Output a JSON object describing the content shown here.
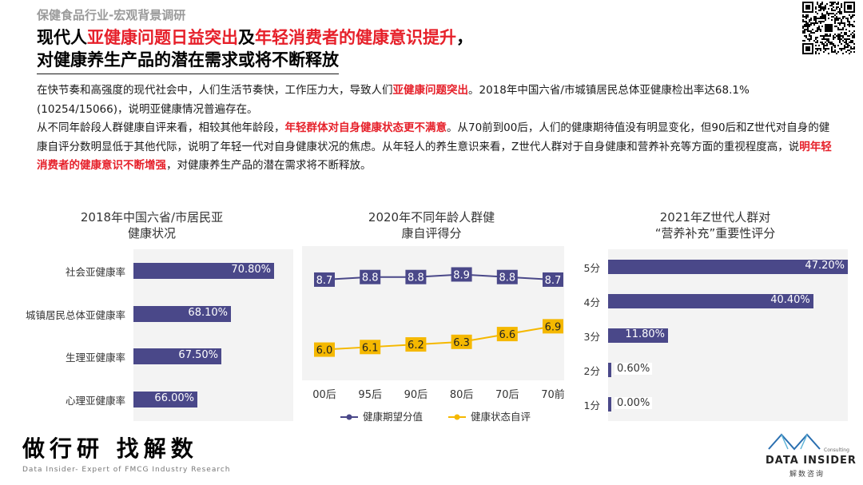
{
  "header": {
    "kicker": "保健食品行业-宏观背景调研",
    "title_line1": [
      {
        "text": "现代人",
        "red": false
      },
      {
        "text": "亚健康问题日益突出",
        "red": true
      },
      {
        "text": "及",
        "red": false
      },
      {
        "text": "年轻消费者的健康意识提升",
        "red": true
      },
      {
        "text": "，",
        "red": false
      }
    ],
    "title_line2": "对健康养生产品的潜在需求或将不断释放"
  },
  "paragraphs": [
    [
      {
        "text": "在快节奏和高强度的现代社会中，人们生活节奏快，工作压力大，导致人们",
        "red": false
      },
      {
        "text": "亚健康问题突出",
        "red": true
      },
      {
        "text": "。2018年中国六省/市城镇居民总体亚健康检出率达68.1%(10254/15066)，说明亚健康情况普遍存在。",
        "red": false
      }
    ],
    [
      {
        "text": "从不同年龄段人群健康自评来看，相较其他年龄段，",
        "red": false
      },
      {
        "text": "年轻群体对自身健康状态更不满意",
        "red": true
      },
      {
        "text": "。从70前到00后，人们的健康期待值没有明显变化，但90后和Z世代对自身的健康自评分数明显低于其他代际，说明了年轻一代对自身健康状况的焦虑。从年轻人的养生意识来看，Z世代人群对于自身健康和营养补充等方面的重视程度高，说",
        "red": false
      },
      {
        "text": "明年轻消费者的健康意识不断增强",
        "red": true
      },
      {
        "text": "，对健康养生产品的潜在需求将不断释放。",
        "red": false
      }
    ]
  ],
  "chart_data": [
    {
      "type": "bar",
      "orientation": "horizontal",
      "title": [
        "2018年中国六省/市居民亚",
        "健康状况"
      ],
      "categories": [
        "社会亚健康率",
        "城镇居民总体亚健康率",
        "生理亚健康率",
        "心理亚健康率"
      ],
      "values": [
        70.8,
        68.1,
        67.5,
        66.0
      ],
      "value_labels": [
        "70.80%",
        "68.10%",
        "67.50%",
        "66.00%"
      ],
      "color": "#4a4889"
    },
    {
      "type": "line",
      "title": [
        "2020年不同年龄人群健",
        "康自评得分"
      ],
      "categories": [
        "00后",
        "95后",
        "90后",
        "80后",
        "70后",
        "70前"
      ],
      "series": [
        {
          "name": "健康期望分值",
          "values": [
            8.7,
            8.8,
            8.8,
            8.9,
            8.8,
            8.7
          ],
          "labels": [
            "8.7",
            "8.8",
            "8.8",
            "8.9",
            "8.8",
            "8.7"
          ],
          "color": "#4a4889"
        },
        {
          "name": "健康状态自评",
          "values": [
            6.0,
            6.1,
            6.2,
            6.3,
            6.6,
            6.9
          ],
          "labels": [
            "6.0",
            "6.1",
            "6.2",
            "6.3",
            "6.6",
            "6.9"
          ],
          "color": "#f5b800"
        }
      ],
      "legend": "bottom"
    },
    {
      "type": "bar",
      "orientation": "horizontal",
      "title": [
        "2021年Z世代人群对",
        "“营养补充”重要性评分"
      ],
      "categories": [
        "5分",
        "4分",
        "3分",
        "2分",
        "1分"
      ],
      "values": [
        47.2,
        40.4,
        11.8,
        0.6,
        0.0
      ],
      "value_labels": [
        "47.20%",
        "40.40%",
        "11.80%",
        "0.60%",
        "0.00%"
      ],
      "color": "#4a4889"
    }
  ],
  "footer": {
    "slogan": "做行研 找解数",
    "subtitle": "Data Insider- Expert of FMCG Industry Research",
    "logo_text": "DATA INSIDER",
    "logo_sub": "解数咨询",
    "logo_tiny": "Consulting"
  }
}
